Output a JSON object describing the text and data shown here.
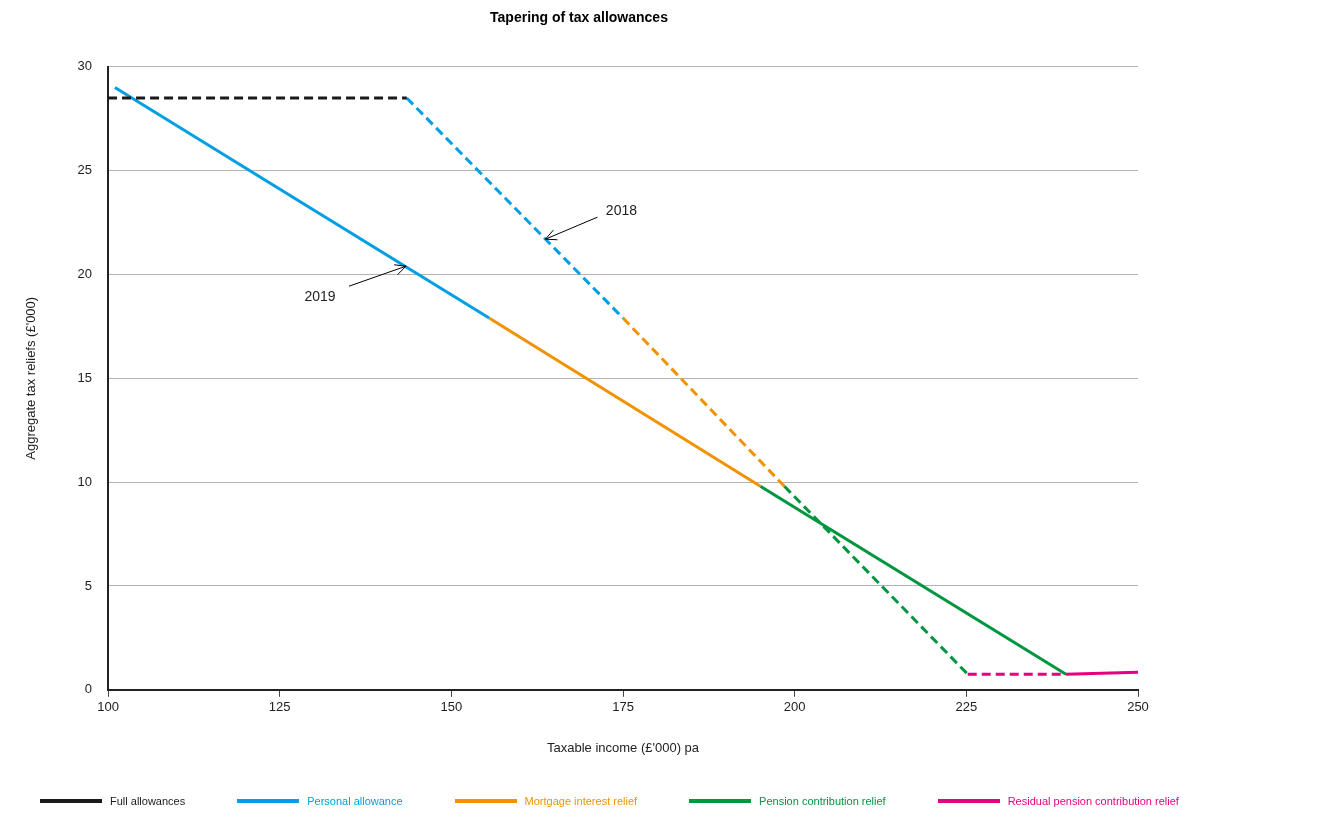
{
  "chart_data": {
    "type": "line",
    "title": "Tapering of tax allowances",
    "xlabel": "Taxable income (£'000) pa",
    "ylabel": "Aggregate tax reliefs (£'000)",
    "xlim": [
      100,
      250
    ],
    "xticks": [
      100,
      125,
      150,
      175,
      200,
      225,
      250
    ],
    "ylim": [
      0,
      30
    ],
    "yticks": [
      0,
      5,
      10,
      15,
      20,
      25,
      30
    ],
    "grid": "y",
    "legend": "bottom",
    "marker": "none",
    "series": [
      {
        "name": "Full allowances",
        "color": "#1a1a1a",
        "line_style": "dashed",
        "x": [
          100,
          143.5
        ],
        "values": [
          28.5,
          28.5
        ]
      },
      {
        "name": "Personal allowance",
        "color": "#009fe3",
        "line_style": "solid",
        "x": [
          101,
          155.5
        ],
        "values": [
          29,
          17.9
        ]
      },
      {
        "name": "Mortgage interest relief",
        "color": "#f39200",
        "line_style": "solid",
        "x": [
          155.5,
          195
        ],
        "values": [
          17.9,
          9.8
        ]
      },
      {
        "name": "Pension contribution relief",
        "color": "#009640",
        "line_style": "solid",
        "x": [
          195,
          239.5
        ],
        "values": [
          9.8,
          0.75
        ]
      },
      {
        "name": "Residual pension contribution relief",
        "color": "#e6007e",
        "line_style": "solid",
        "x": [
          239.5,
          250
        ],
        "values": [
          0.75,
          0.85
        ]
      },
      {
        "color": "#009fe3",
        "line_style": "dashed",
        "x": [
          143.5,
          175
        ],
        "values": [
          28.5,
          17.9
        ]
      },
      {
        "color": "#f39200",
        "line_style": "dashed",
        "x": [
          175,
          198.5
        ],
        "values": [
          17.9,
          9.8
        ]
      },
      {
        "color": "#009640",
        "line_style": "dashed",
        "x": [
          198.5,
          225.2
        ],
        "values": [
          9.8,
          0.75
        ]
      },
      {
        "color": "#e6007e",
        "line_style": "dashed",
        "x": [
          225.2,
          239.5
        ],
        "values": [
          0.75,
          0.75
        ]
      }
    ],
    "annotations": [
      {
        "text": "2018",
        "x": 163.7,
        "y": 21.7
      },
      {
        "text": "2019",
        "x": 143.4,
        "y": 20.4
      }
    ]
  }
}
